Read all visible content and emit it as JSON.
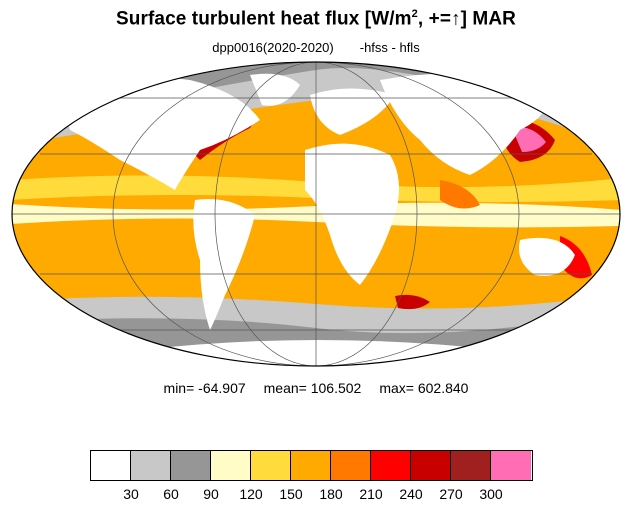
{
  "title": {
    "main": "Surface turbulent heat flux [W/m",
    "sup": "2",
    "tail": ", +=↑]  MAR"
  },
  "subtitle": {
    "left": "dpp0016(2020-2020)",
    "right": "-hfss - hfls"
  },
  "stats": {
    "min": "min= -64.907",
    "mean": "mean= 106.502",
    "max": "max= 602.840"
  },
  "legend": {
    "levels": [
      "30",
      "60",
      "90",
      "120",
      "150",
      "180",
      "210",
      "240",
      "270",
      "300"
    ],
    "colors": [
      "#ffffff",
      "#c8c8c8",
      "#969696",
      "#fffcc8",
      "#ffdc3c",
      "#ffaa00",
      "#ff7800",
      "#ff0000",
      "#c80000",
      "#a02020",
      "#ff6eb4"
    ]
  },
  "map": {
    "projection": "mollweide",
    "ocean_background": "#ffaa00",
    "land_color": "#ffffff",
    "graticule_color": "#555555",
    "coastline_color": "#222222"
  }
}
